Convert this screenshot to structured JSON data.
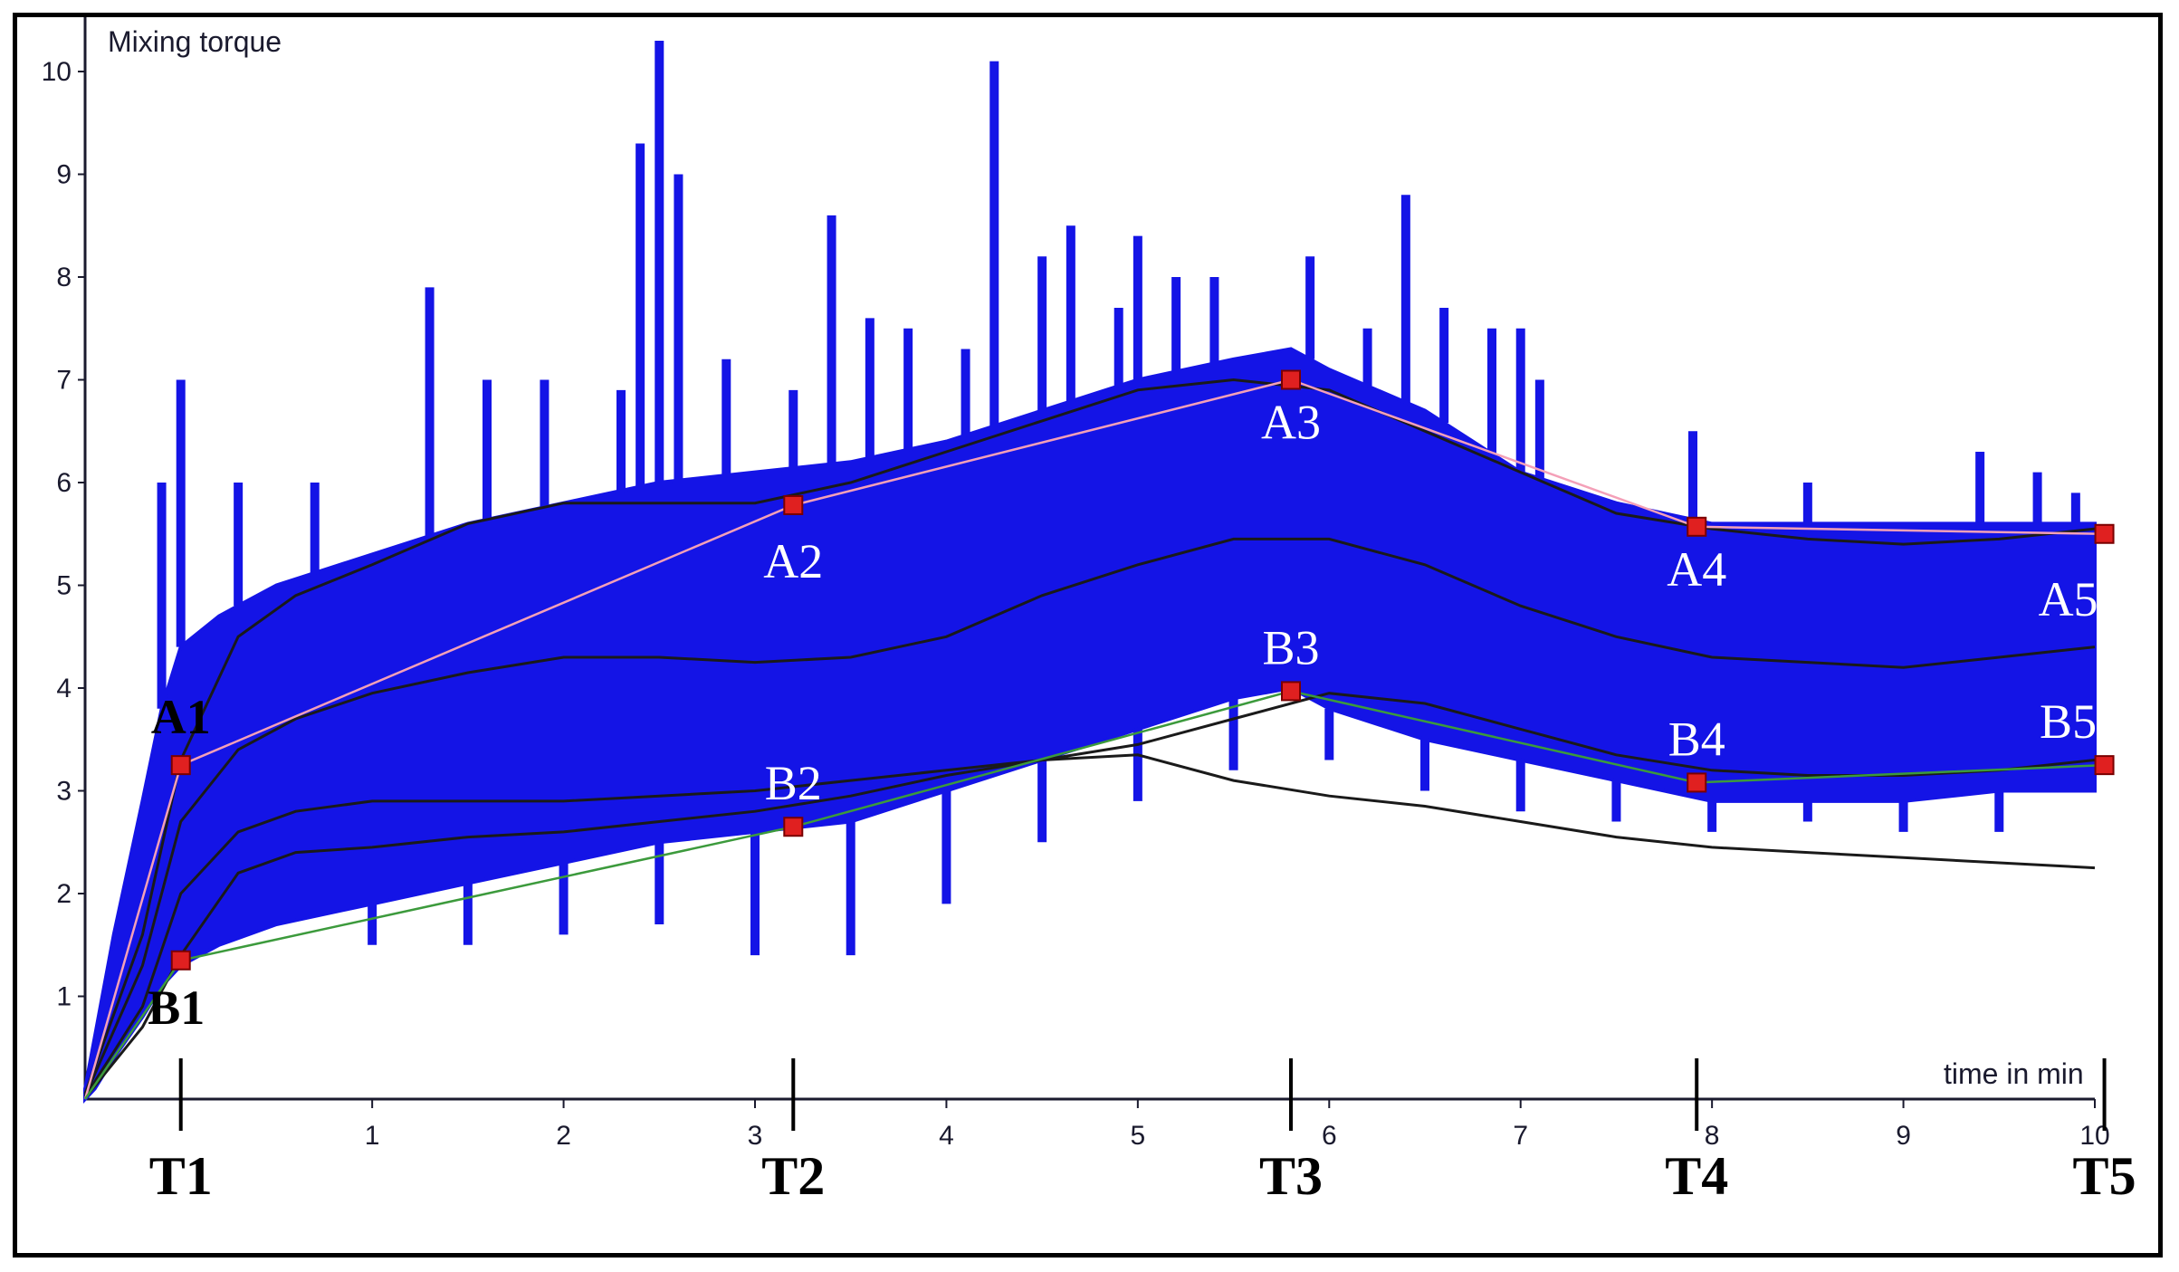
{
  "chart_data": {
    "type": "line",
    "ylabel": "Mixing torque",
    "xlabel": "time in min",
    "xlim": [
      -0.5,
      10
    ],
    "ylim": [
      0,
      10.2
    ],
    "x_ticks": [
      1,
      2,
      3,
      4,
      5,
      6,
      7,
      8,
      9,
      10
    ],
    "y_ticks": [
      1,
      2,
      3,
      4,
      5,
      6,
      7,
      8,
      9,
      10
    ],
    "colors": {
      "signal": "#1414e6",
      "envelope": "#1a1a1a",
      "upper_path": "#f4a0b8",
      "lower_path": "#3c9a3c",
      "marker": "#e02020"
    },
    "envelope_x": [
      -0.5,
      -0.2,
      0,
      0.3,
      0.6,
      1,
      1.5,
      2,
      2.5,
      3,
      3.5,
      4,
      4.5,
      5,
      5.5,
      6,
      6.5,
      7,
      7.5,
      8,
      8.5,
      9,
      9.5,
      10
    ],
    "signal_upper_x": [
      -0.5,
      -0.45,
      -0.35,
      -0.2,
      -0.1,
      0,
      0.2,
      0.5,
      1,
      1.5,
      2,
      2.5,
      3,
      3.5,
      4,
      4.5,
      5,
      5.5,
      5.8,
      6,
      6.5,
      7,
      7.5,
      8,
      8.5,
      9,
      9.5,
      10
    ],
    "signal_upper_y": [
      0.1,
      0.6,
      1.6,
      2.9,
      3.8,
      4.4,
      4.7,
      5.0,
      5.3,
      5.6,
      5.8,
      6.0,
      6.1,
      6.2,
      6.4,
      6.7,
      7.0,
      7.2,
      7.3,
      7.1,
      6.7,
      6.1,
      5.8,
      5.6,
      5.6,
      5.6,
      5.6,
      5.6
    ],
    "signal_lower_x": [
      -0.5,
      -0.45,
      -0.35,
      -0.2,
      -0.1,
      0,
      0.2,
      0.5,
      1,
      1.5,
      2,
      2.5,
      3,
      3.5,
      4,
      4.5,
      5,
      5.5,
      5.8,
      6,
      6.5,
      7,
      7.5,
      8,
      8.5,
      9,
      9.5,
      10
    ],
    "signal_lower_y": [
      0.0,
      0.1,
      0.4,
      0.8,
      1.1,
      1.3,
      1.5,
      1.7,
      1.9,
      2.1,
      2.3,
      2.5,
      2.6,
      2.7,
      3.0,
      3.3,
      3.6,
      3.9,
      4.0,
      3.8,
      3.5,
      3.3,
      3.1,
      2.9,
      2.9,
      2.9,
      3.0,
      3.0
    ],
    "signal_spikes": [
      {
        "x": 0,
        "y": 7.0
      },
      {
        "x": -0.1,
        "y": 6.0
      },
      {
        "x": 0.3,
        "y": 6.0
      },
      {
        "x": 0.7,
        "y": 6.0
      },
      {
        "x": 1.3,
        "y": 7.9
      },
      {
        "x": 1.6,
        "y": 7.0
      },
      {
        "x": 1.9,
        "y": 7.0
      },
      {
        "x": 2.3,
        "y": 6.9
      },
      {
        "x": 2.4,
        "y": 9.3
      },
      {
        "x": 2.5,
        "y": 10.3
      },
      {
        "x": 2.6,
        "y": 9.0
      },
      {
        "x": 2.85,
        "y": 7.2
      },
      {
        "x": 3.2,
        "y": 6.9
      },
      {
        "x": 3.4,
        "y": 8.6
      },
      {
        "x": 3.6,
        "y": 7.6
      },
      {
        "x": 3.8,
        "y": 7.5
      },
      {
        "x": 4.1,
        "y": 7.3
      },
      {
        "x": 4.25,
        "y": 10.1
      },
      {
        "x": 4.5,
        "y": 8.2
      },
      {
        "x": 4.65,
        "y": 8.5
      },
      {
        "x": 4.9,
        "y": 7.7
      },
      {
        "x": 5.0,
        "y": 8.4
      },
      {
        "x": 5.2,
        "y": 8.0
      },
      {
        "x": 5.4,
        "y": 8.0
      },
      {
        "x": 5.9,
        "y": 8.2
      },
      {
        "x": 6.2,
        "y": 7.5
      },
      {
        "x": 6.4,
        "y": 8.8
      },
      {
        "x": 6.6,
        "y": 7.7
      },
      {
        "x": 6.85,
        "y": 7.5
      },
      {
        "x": 7.0,
        "y": 7.5
      },
      {
        "x": 7.1,
        "y": 7.0
      },
      {
        "x": 7.9,
        "y": 6.5
      },
      {
        "x": 8.5,
        "y": 6.0
      },
      {
        "x": 9.4,
        "y": 6.3
      },
      {
        "x": 9.7,
        "y": 6.1
      },
      {
        "x": 9.9,
        "y": 5.9
      }
    ],
    "signal_dips": [
      {
        "x": 0.5,
        "y": 1.8
      },
      {
        "x": 1.0,
        "y": 1.5
      },
      {
        "x": 1.5,
        "y": 1.5
      },
      {
        "x": 2.0,
        "y": 1.6
      },
      {
        "x": 2.5,
        "y": 1.7
      },
      {
        "x": 3.0,
        "y": 1.4
      },
      {
        "x": 3.5,
        "y": 1.4
      },
      {
        "x": 4.0,
        "y": 1.9
      },
      {
        "x": 4.5,
        "y": 2.5
      },
      {
        "x": 5.0,
        "y": 2.9
      },
      {
        "x": 5.5,
        "y": 3.2
      },
      {
        "x": 6.0,
        "y": 3.3
      },
      {
        "x": 6.5,
        "y": 3.0
      },
      {
        "x": 7.0,
        "y": 2.8
      },
      {
        "x": 7.5,
        "y": 2.7
      },
      {
        "x": 8.0,
        "y": 2.6
      },
      {
        "x": 8.5,
        "y": 2.7
      },
      {
        "x": 9.0,
        "y": 2.6
      },
      {
        "x": 9.5,
        "y": 2.6
      }
    ],
    "envelopes": [
      {
        "y": [
          0.05,
          1.6,
          3.3,
          4.5,
          4.9,
          5.2,
          5.6,
          5.8,
          5.8,
          5.8,
          6.0,
          6.3,
          6.6,
          6.9,
          7.0,
          6.9,
          6.5,
          6.1,
          5.7,
          5.55,
          5.45,
          5.4,
          5.45,
          5.55
        ]
      },
      {
        "y": [
          0.03,
          1.3,
          2.7,
          3.4,
          3.7,
          3.95,
          4.15,
          4.3,
          4.3,
          4.25,
          4.3,
          4.5,
          4.9,
          5.2,
          5.45,
          5.45,
          5.2,
          4.8,
          4.5,
          4.3,
          4.25,
          4.2,
          4.3,
          4.4
        ]
      },
      {
        "y": [
          0.02,
          0.9,
          2.0,
          2.6,
          2.8,
          2.9,
          2.9,
          2.9,
          2.95,
          3.0,
          3.1,
          3.2,
          3.3,
          3.45,
          3.7,
          3.95,
          3.85,
          3.6,
          3.35,
          3.2,
          3.15,
          3.15,
          3.2,
          3.3
        ]
      },
      {
        "y": [
          0.01,
          0.7,
          1.4,
          2.2,
          2.4,
          2.45,
          2.55,
          2.6,
          2.7,
          2.8,
          2.95,
          3.15,
          3.3,
          3.35,
          3.1,
          2.95,
          2.85,
          2.7,
          2.55,
          2.45,
          2.4,
          2.35,
          2.3,
          2.25
        ]
      }
    ],
    "upper_points": [
      {
        "label": "A1",
        "x": 0,
        "y": 3.25
      },
      {
        "label": "A2",
        "x": 3.2,
        "y": 5.78
      },
      {
        "label": "A3",
        "x": 5.8,
        "y": 7.0
      },
      {
        "label": "A4",
        "x": 7.92,
        "y": 5.57
      },
      {
        "label": "A5",
        "x": 10.05,
        "y": 5.5
      }
    ],
    "lower_points": [
      {
        "label": "B1",
        "x": 0,
        "y": 1.35
      },
      {
        "label": "B2",
        "x": 3.2,
        "y": 2.65
      },
      {
        "label": "B3",
        "x": 5.8,
        "y": 3.97
      },
      {
        "label": "B4",
        "x": 7.92,
        "y": 3.08
      },
      {
        "label": "B5",
        "x": 10.05,
        "y": 3.25
      }
    ],
    "time_marks": [
      {
        "label": "T1",
        "x": 0
      },
      {
        "label": "T2",
        "x": 3.2
      },
      {
        "label": "T3",
        "x": 5.8
      },
      {
        "label": "T4",
        "x": 7.92
      },
      {
        "label": "T5",
        "x": 10.05
      }
    ]
  }
}
